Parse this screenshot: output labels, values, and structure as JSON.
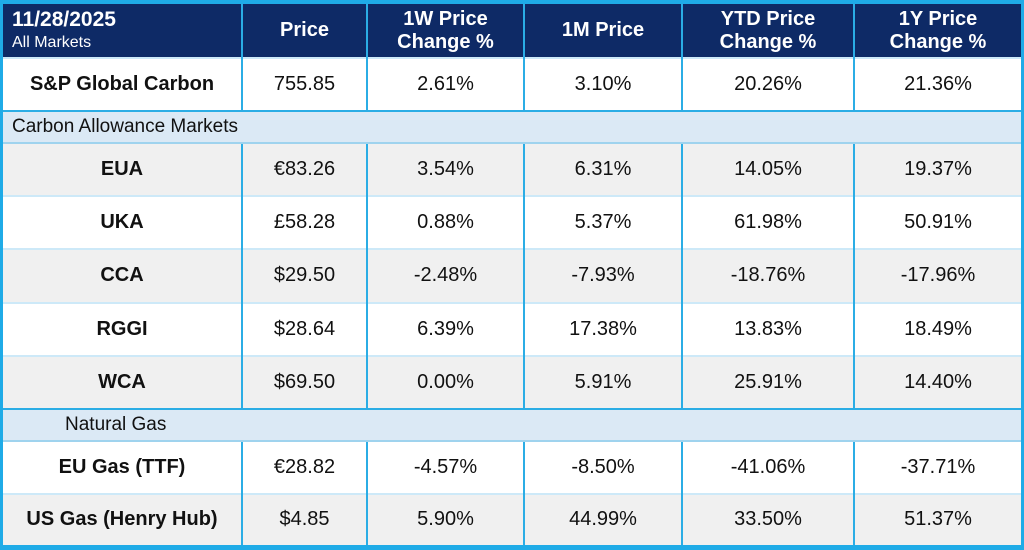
{
  "chart_data": {
    "type": "table",
    "title": "11/28/2025 All Markets carbon and gas price summary",
    "corner": {
      "date": "11/28/2025",
      "scope": "All Markets"
    },
    "columns": [
      {
        "lines": [
          "Price"
        ]
      },
      {
        "lines": [
          "1W Price",
          "Change %"
        ]
      },
      {
        "lines": [
          "1M Price"
        ]
      },
      {
        "lines": [
          "YTD Price",
          "Change %"
        ]
      },
      {
        "lines": [
          "1Y Price",
          "Change %"
        ]
      }
    ],
    "rows": [
      {
        "type": "data",
        "name": "S&P Global Carbon",
        "values": [
          "755.85",
          "2.61%",
          "3.10%",
          "20.26%",
          "21.36%"
        ],
        "shaded": false
      },
      {
        "type": "section",
        "label": "Carbon Allowance Markets",
        "indent": false
      },
      {
        "type": "data",
        "name": "EUA",
        "values": [
          "€83.26",
          "3.54%",
          "6.31%",
          "14.05%",
          "19.37%"
        ],
        "shaded": true
      },
      {
        "type": "data",
        "name": "UKA",
        "values": [
          "£58.28",
          "0.88%",
          "5.37%",
          "61.98%",
          "50.91%"
        ],
        "shaded": false
      },
      {
        "type": "data",
        "name": "CCA",
        "values": [
          "$29.50",
          "-2.48%",
          "-7.93%",
          "-18.76%",
          "-17.96%"
        ],
        "shaded": true
      },
      {
        "type": "data",
        "name": "RGGI",
        "values": [
          "$28.64",
          "6.39%",
          "17.38%",
          "13.83%",
          "18.49%"
        ],
        "shaded": false
      },
      {
        "type": "data",
        "name": "WCA",
        "values": [
          "$69.50",
          "0.00%",
          "5.91%",
          "25.91%",
          "14.40%"
        ],
        "shaded": true
      },
      {
        "type": "section",
        "label": "Natural Gas",
        "indent": true
      },
      {
        "type": "data",
        "name": "EU Gas (TTF)",
        "values": [
          "€28.82",
          "-4.57%",
          "-8.50%",
          "-41.06%",
          "-37.71%"
        ],
        "shaded": false
      },
      {
        "type": "data",
        "name": "US Gas (Henry Hub)",
        "values": [
          "$4.85",
          "5.90%",
          "44.99%",
          "33.50%",
          "51.37%"
        ],
        "shaded": true
      }
    ],
    "colors": {
      "header_background": "#0e2a66",
      "header_text": "#ffffff",
      "outer_border": "#1fabe7",
      "column_border": "#2bade5",
      "row_border": "#cde9f8",
      "section_band": "#dbe9f5",
      "shaded_row": "#f0f0f0",
      "body_text": "#111111"
    }
  }
}
